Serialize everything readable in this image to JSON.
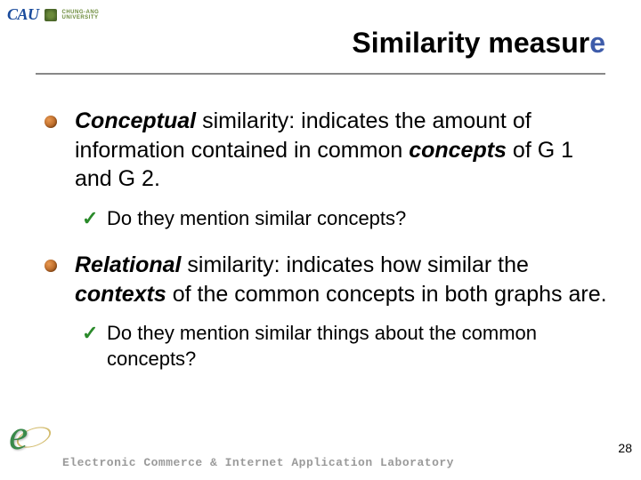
{
  "logo": {
    "main": "CAU",
    "sub1": "CHUNG-ANG",
    "sub2": "UNIVERSITY"
  },
  "title": {
    "prefix": "Similarity measur",
    "accent": "e"
  },
  "bullets": [
    {
      "lead": "Conceptual",
      "rest1": " similarity: indicates the amount of information contained in common ",
      "italic2": "concepts",
      "rest2": " of G 1 and G 2.",
      "sub": "Do they mention similar concepts?"
    },
    {
      "lead": "Relational",
      "rest1": " similarity: indicates how similar the ",
      "italic2": "contexts",
      "rest2": " of the common concepts in both graphs are.",
      "sub": "Do they mention similar things about the common concepts?"
    }
  ],
  "footer": {
    "text": "Electronic Commerce & Internet Application Laboratory"
  },
  "page": "28",
  "colors": {
    "title_accent": "#3e5caa",
    "bullet_dot": "#c87030",
    "check": "#2a8a2a",
    "footer_text": "#9a9a9a",
    "hr": "#888888"
  }
}
